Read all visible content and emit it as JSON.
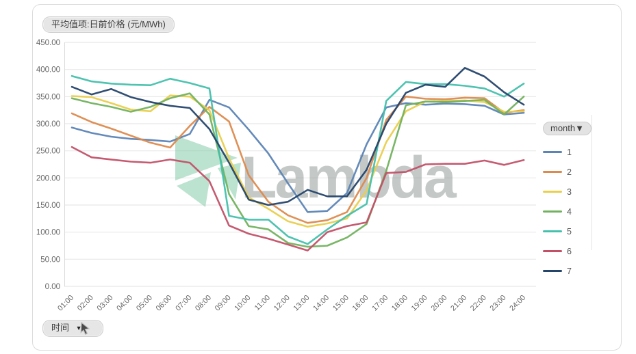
{
  "panel": {
    "value_field_label": "平均值项:日前价格 (元/MWh)",
    "time_field_label": "时间",
    "watermark_text": "Lambda"
  },
  "legend": {
    "title": "month",
    "items": [
      {
        "label": "1",
        "color": "#5c84b5"
      },
      {
        "label": "2",
        "color": "#dd8a4d"
      },
      {
        "label": "3",
        "color": "#e9cf4d"
      },
      {
        "label": "4",
        "color": "#72b25e"
      },
      {
        "label": "5",
        "color": "#45c0ac"
      },
      {
        "label": "6",
        "color": "#c25168"
      },
      {
        "label": "7",
        "color": "#25456b"
      }
    ]
  },
  "chart_data": {
    "type": "line",
    "title": "平均值项:日前价格 (元/MWh)",
    "xlabel": "时间",
    "ylabel": "日前价格 (元/MWh)",
    "x": [
      "01:00",
      "02:00",
      "03:00",
      "04:00",
      "05:00",
      "06:00",
      "07:00",
      "08:00",
      "09:00",
      "10:00",
      "11:00",
      "12:00",
      "13:00",
      "14:00",
      "15:00",
      "16:00",
      "17:00",
      "18:00",
      "19:00",
      "20:00",
      "21:00",
      "22:00",
      "23:00",
      "24:00"
    ],
    "ylim": [
      0,
      450
    ],
    "ytick_labels": [
      "0.00",
      "50.00",
      "100.00",
      "150.00",
      "200.00",
      "250.00",
      "300.00",
      "350.00",
      "400.00",
      "450.00"
    ],
    "grid": "horizontal",
    "legend_position": "right",
    "legend_title": "month",
    "series": [
      {
        "name": "1",
        "color": "#5c84b5",
        "values": [
          293,
          283,
          276,
          272,
          270,
          267,
          281,
          344,
          330,
          289,
          245,
          190,
          137,
          139,
          172,
          262,
          330,
          338,
          335,
          337,
          336,
          333,
          317,
          320
        ]
      },
      {
        "name": "2",
        "color": "#dd8a4d",
        "values": [
          319,
          303,
          291,
          278,
          265,
          256,
          296,
          331,
          304,
          205,
          156,
          131,
          117,
          122,
          137,
          200,
          307,
          350,
          346,
          345,
          348,
          347,
          320,
          325
        ]
      },
      {
        "name": "3",
        "color": "#e9cf4d",
        "values": [
          351,
          349,
          338,
          326,
          323,
          352,
          350,
          325,
          236,
          164,
          143,
          120,
          110,
          116,
          125,
          177,
          266,
          323,
          341,
          342,
          343,
          340,
          322,
          323
        ]
      },
      {
        "name": "4",
        "color": "#72b25e",
        "values": [
          347,
          338,
          331,
          322,
          331,
          347,
          356,
          317,
          170,
          111,
          105,
          80,
          73,
          75,
          90,
          115,
          213,
          334,
          341,
          340,
          342,
          344,
          317,
          350
        ]
      },
      {
        "name": "5",
        "color": "#45c0ac",
        "values": [
          388,
          378,
          374,
          372,
          371,
          383,
          375,
          365,
          130,
          123,
          123,
          92,
          78,
          105,
          130,
          152,
          342,
          377,
          373,
          373,
          370,
          365,
          350,
          374
        ]
      },
      {
        "name": "6",
        "color": "#c25168",
        "values": [
          257,
          238,
          234,
          230,
          228,
          234,
          228,
          194,
          112,
          97,
          88,
          77,
          66,
          100,
          111,
          118,
          209,
          211,
          225,
          226,
          226,
          232,
          224,
          233
        ]
      },
      {
        "name": "7",
        "color": "#25456b",
        "values": [
          368,
          354,
          364,
          349,
          340,
          333,
          329,
          290,
          228,
          160,
          150,
          156,
          178,
          166,
          166,
          215,
          300,
          357,
          372,
          368,
          403,
          387,
          358,
          335
        ]
      }
    ]
  }
}
